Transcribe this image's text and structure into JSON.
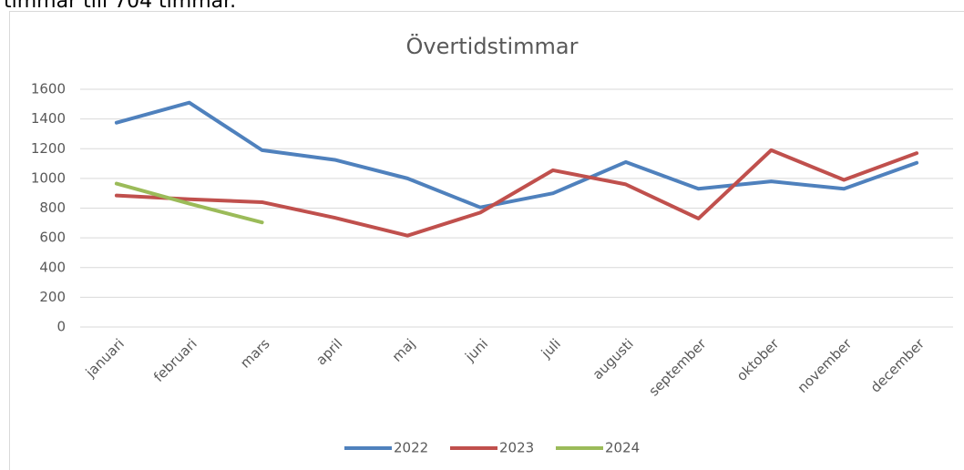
{
  "caption": "timmar till 704 timmar.",
  "chart_data": {
    "type": "line",
    "title": "Övertidstimmar",
    "categories": [
      "januari",
      "februari",
      "mars",
      "april",
      "maj",
      "juni",
      "juli",
      "augusti",
      "september",
      "oktober",
      "november",
      "december"
    ],
    "series": [
      {
        "name": "2022",
        "color": "#4f81bd",
        "values": [
          1375,
          1510,
          1190,
          1125,
          1000,
          805,
          900,
          1110,
          930,
          980,
          930,
          1105
        ]
      },
      {
        "name": "2023",
        "color": "#c0504d",
        "values": [
          885,
          860,
          840,
          735,
          615,
          770,
          1055,
          960,
          730,
          1190,
          990,
          1170
        ]
      },
      {
        "name": "2024",
        "color": "#9bbb59",
        "values": [
          965,
          830,
          704,
          null,
          null,
          null,
          null,
          null,
          null,
          null,
          null,
          null
        ]
      }
    ],
    "ylim": [
      0,
      1600
    ],
    "yticks": [
      0,
      200,
      400,
      600,
      800,
      1000,
      1200,
      1400,
      1600
    ],
    "grid": true,
    "legend": "bottom"
  }
}
